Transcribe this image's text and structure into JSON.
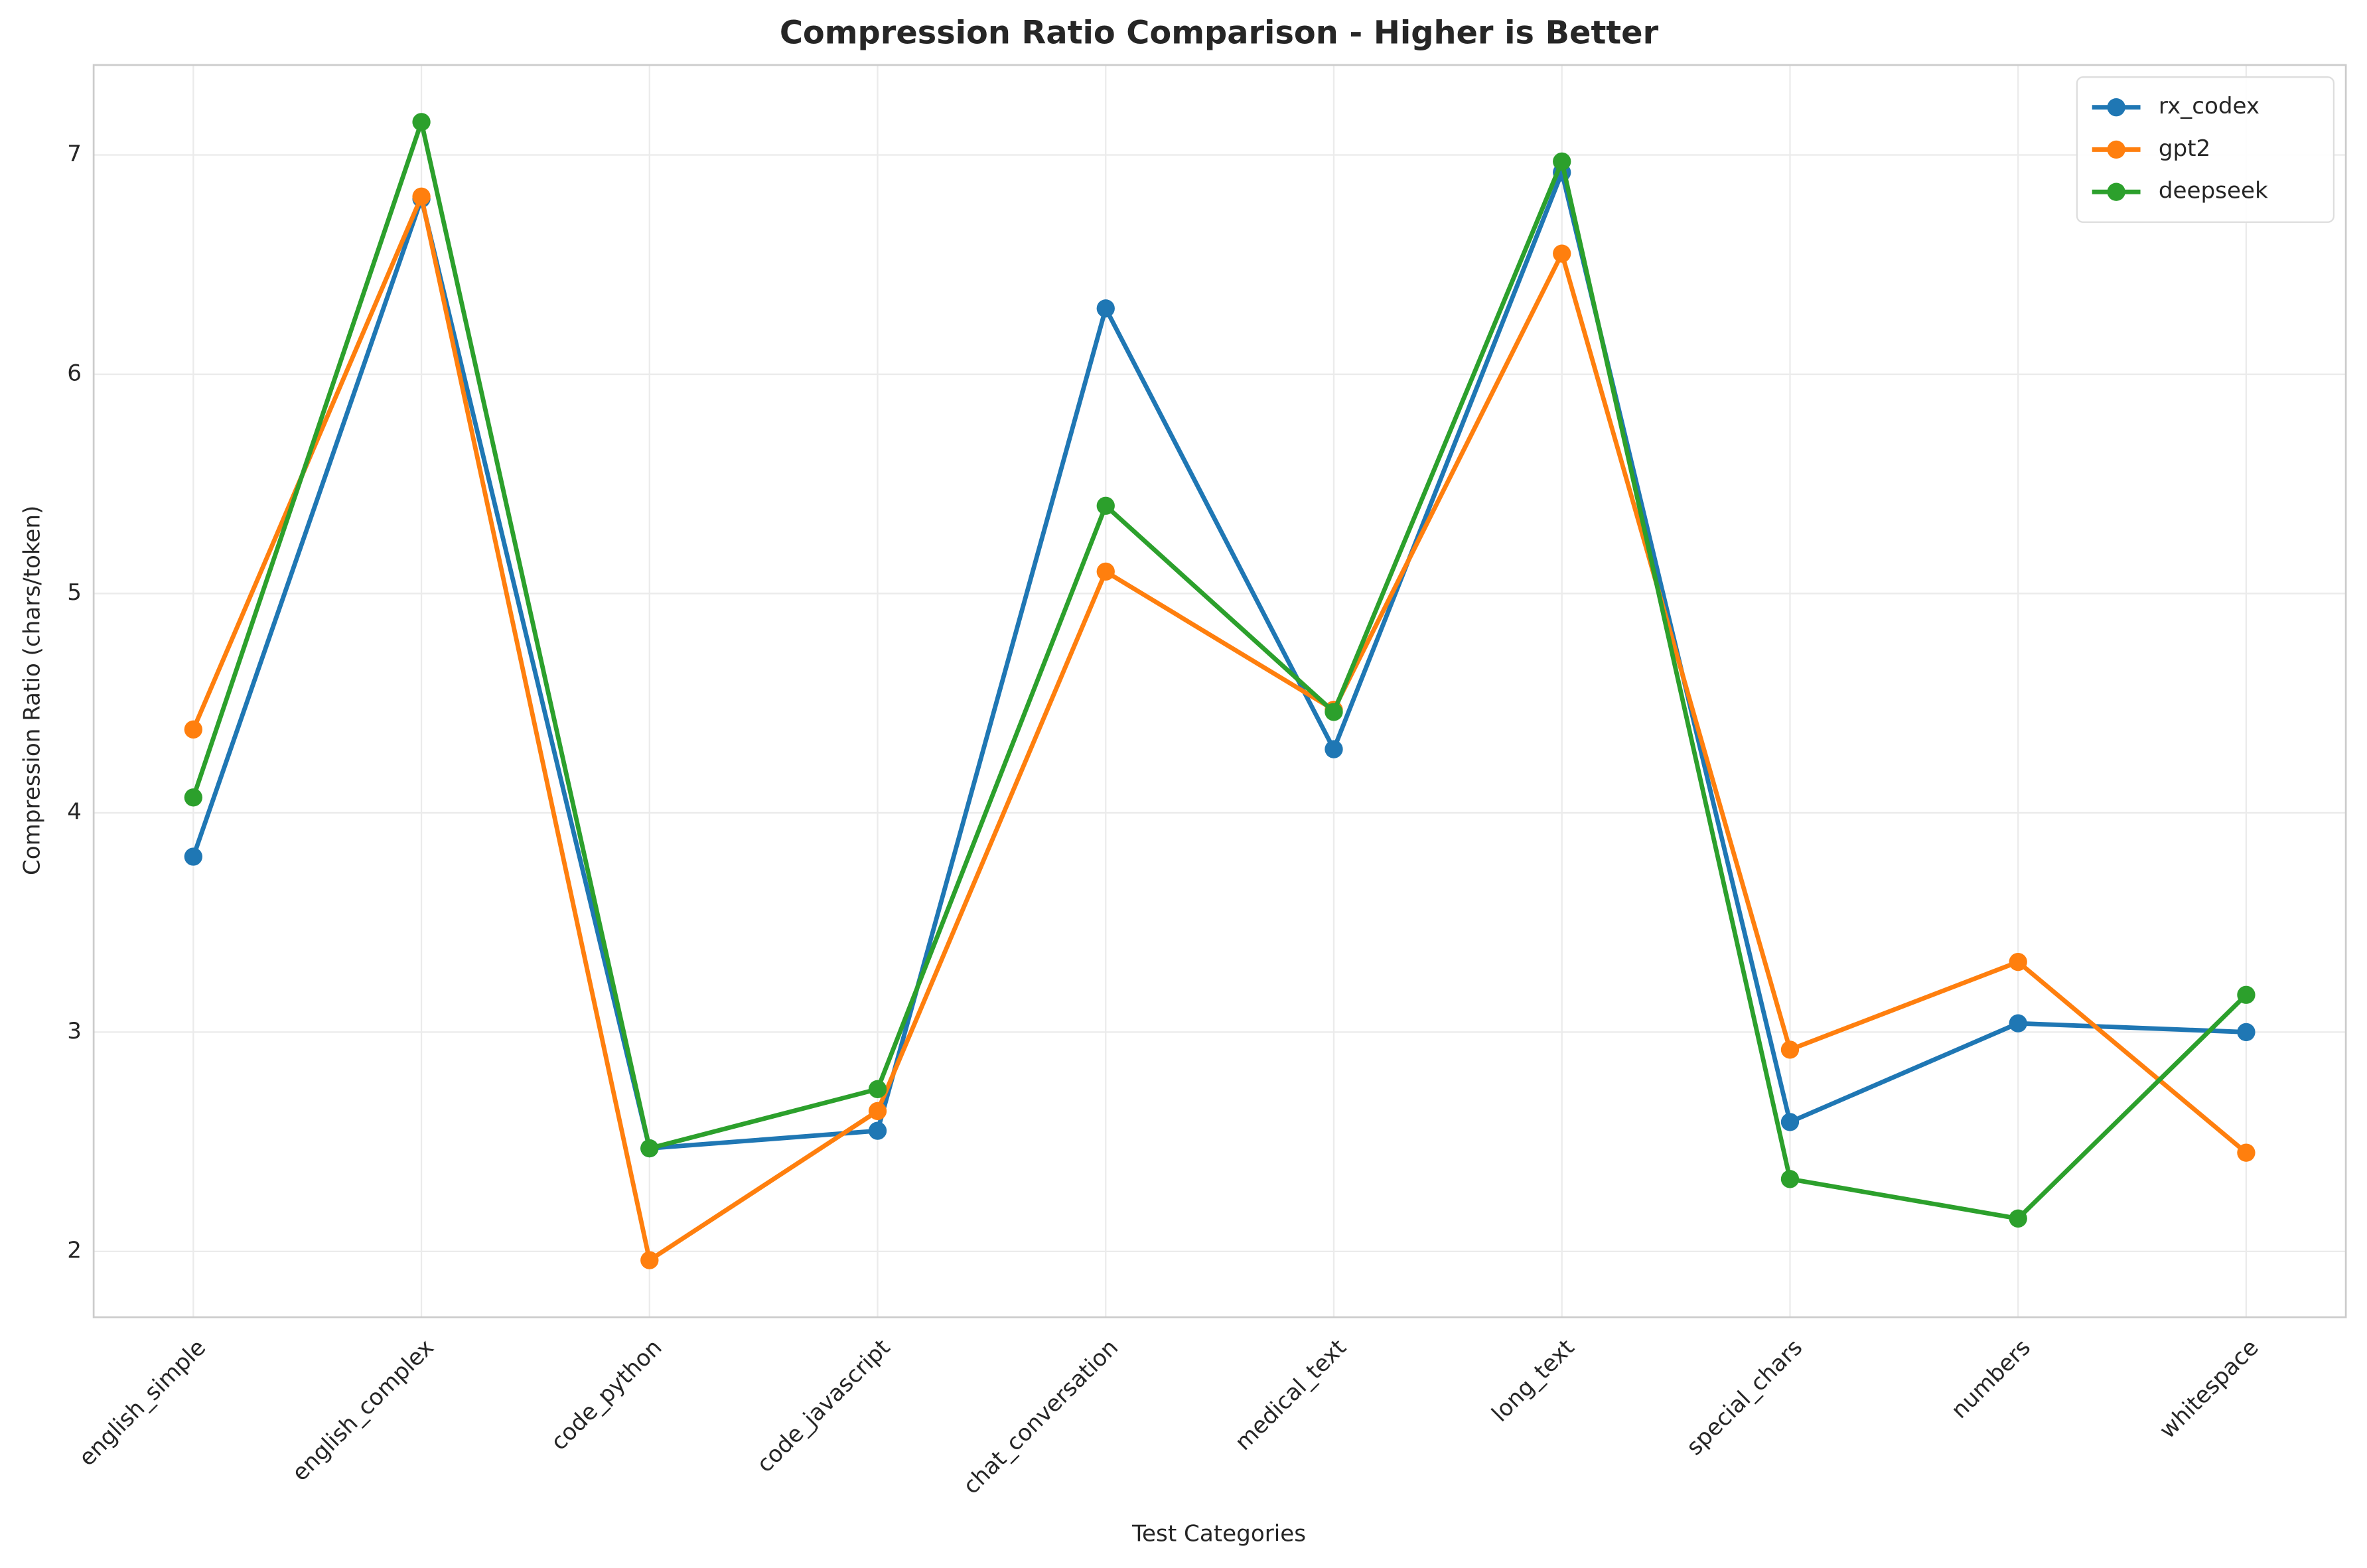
{
  "chart_data": {
    "type": "line",
    "title": "Compression Ratio Comparison - Higher is Better",
    "x_label": "Test Categories",
    "y_label": "Compression Ratio (chars/token)",
    "categories": [
      "english_simple",
      "english_complex",
      "code_python",
      "code_javascript",
      "chat_conversation",
      "medical_text",
      "long_text",
      "special_chars",
      "numbers",
      "whitespace"
    ],
    "series": [
      {
        "name": "rx_codex",
        "color": "#1f77b4",
        "values": [
          3.8,
          6.8,
          2.47,
          2.55,
          6.3,
          4.29,
          6.92,
          2.59,
          3.04,
          3.0
        ]
      },
      {
        "name": "gpt2",
        "color": "#ff7f0e",
        "values": [
          4.38,
          6.81,
          1.96,
          2.64,
          5.1,
          4.47,
          6.55,
          2.92,
          3.32,
          2.45
        ]
      },
      {
        "name": "deepseek",
        "color": "#2ca02c",
        "values": [
          4.07,
          7.15,
          2.47,
          2.74,
          5.4,
          4.46,
          6.97,
          2.33,
          2.15,
          3.17
        ]
      }
    ],
    "ylim": [
      1.7,
      7.41
    ],
    "yticks": [
      2,
      3,
      4,
      5,
      6,
      7
    ],
    "grid": true,
    "legend": "upper right"
  }
}
